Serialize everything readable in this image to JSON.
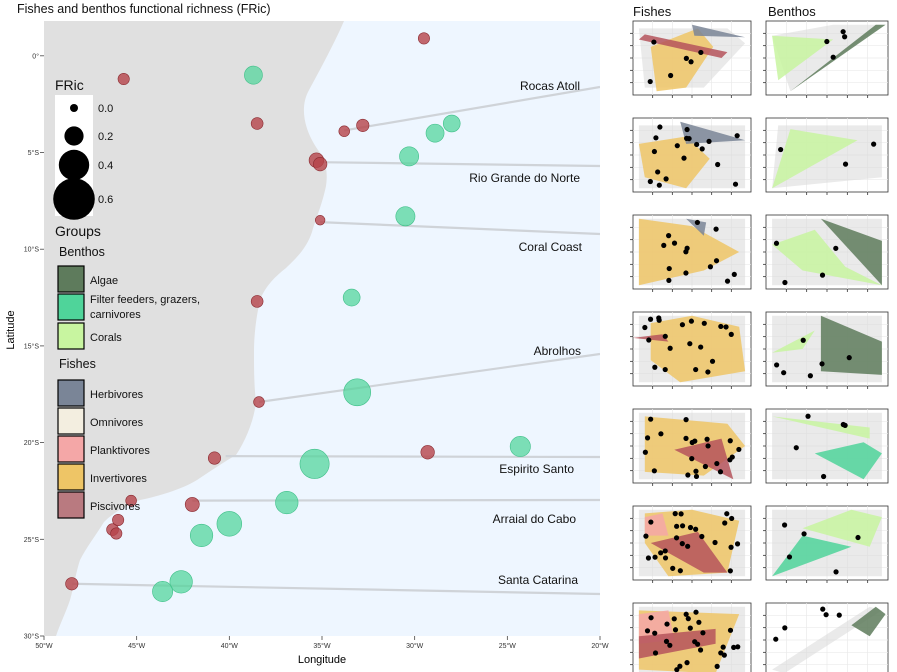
{
  "title": "Fishes and benthos functional richness (FRic)",
  "map": {
    "xlabel": "Longitude",
    "ylabel": "Latitude",
    "x_ticks": [
      {
        "value": -50,
        "label": "50°W"
      },
      {
        "value": -45,
        "label": "45°W"
      },
      {
        "value": -40,
        "label": "40°W"
      },
      {
        "value": -35,
        "label": "35°W"
      },
      {
        "value": -30,
        "label": "30°W"
      },
      {
        "value": -25,
        "label": "25°W"
      },
      {
        "value": -20,
        "label": "20°W"
      }
    ],
    "y_ticks": [
      {
        "value": 0,
        "label": "0°"
      },
      {
        "value": -5,
        "label": "5°S"
      },
      {
        "value": -10,
        "label": "10°S"
      },
      {
        "value": -15,
        "label": "15°S"
      },
      {
        "value": -20,
        "label": "20°S"
      },
      {
        "value": -25,
        "label": "25°S"
      },
      {
        "value": -30,
        "label": "30°S"
      }
    ],
    "xlim": [
      -50,
      -20
    ],
    "ylim": [
      -30,
      1.8
    ],
    "land_color": "#e0e0e0",
    "ocean_color": "#eef6ff"
  },
  "sites": [
    {
      "name": "Rocas Atoll",
      "lon": -33.8,
      "lat": -3.86
    },
    {
      "name": "Rio Grande do Norte",
      "lon": -35.1,
      "lat": -5.5
    },
    {
      "name": "Coral Coast",
      "lon": -35.1,
      "lat": -8.6
    },
    {
      "name": "Abrolhos",
      "lon": -38.4,
      "lat": -17.9
    },
    {
      "name": "Espirito Santo",
      "lon": -40.2,
      "lat": -20.7
    },
    {
      "name": "Arraial do Cabo",
      "lon": -42.0,
      "lat": -23.0
    },
    {
      "name": "Santa Catarina",
      "lon": -48.5,
      "lat": -27.3
    }
  ],
  "chart_data": [
    {
      "type": "scatter",
      "title": "Fishes and benthos functional richness (FRic)",
      "xlabel": "Longitude",
      "ylabel": "Latitude",
      "xlim": [
        -50,
        -20
      ],
      "ylim": [
        -30,
        1.8
      ],
      "size_legend": {
        "title": "FRic",
        "values": [
          0.0,
          0.2,
          0.4,
          0.6
        ]
      },
      "series": [
        {
          "name": "Piscivores",
          "group": "Fishes",
          "color": "#b5434a",
          "points": [
            {
              "lon": -29.5,
              "lat": 0.9,
              "fric": 0.06
            },
            {
              "lon": -45.7,
              "lat": -1.2,
              "fric": 0.06
            },
            {
              "lon": -38.5,
              "lat": -3.5,
              "fric": 0.07
            },
            {
              "lon": -33.8,
              "lat": -3.9,
              "fric": 0.05
            },
            {
              "lon": -32.8,
              "lat": -3.6,
              "fric": 0.08
            },
            {
              "lon": -35.3,
              "lat": -5.4,
              "fric": 0.12
            },
            {
              "lon": -35.1,
              "lat": -5.6,
              "fric": 0.1
            },
            {
              "lon": -35.1,
              "lat": -8.5,
              "fric": 0.03
            },
            {
              "lon": -38.5,
              "lat": -12.7,
              "fric": 0.07
            },
            {
              "lon": -38.4,
              "lat": -17.9,
              "fric": 0.05
            },
            {
              "lon": -40.8,
              "lat": -20.8,
              "fric": 0.08
            },
            {
              "lon": -29.3,
              "lat": -20.5,
              "fric": 0.1
            },
            {
              "lon": -45.3,
              "lat": -23.0,
              "fric": 0.05
            },
            {
              "lon": -42.0,
              "lat": -23.2,
              "fric": 0.11
            },
            {
              "lon": -46.0,
              "lat": -24.0,
              "fric": 0.06
            },
            {
              "lon": -46.3,
              "lat": -24.5,
              "fric": 0.07
            },
            {
              "lon": -46.1,
              "lat": -24.7,
              "fric": 0.06
            },
            {
              "lon": -48.5,
              "lat": -27.3,
              "fric": 0.08
            }
          ]
        },
        {
          "name": "Filter feeders, grazers, carnivores",
          "group": "Benthos",
          "color": "#4fd49a",
          "points": [
            {
              "lon": -38.7,
              "lat": -1.0,
              "fric": 0.18
            },
            {
              "lon": -28.0,
              "lat": -3.5,
              "fric": 0.16
            },
            {
              "lon": -28.9,
              "lat": -4.0,
              "fric": 0.18
            },
            {
              "lon": -30.3,
              "lat": -5.2,
              "fric": 0.2
            },
            {
              "lon": -30.5,
              "lat": -8.3,
              "fric": 0.2
            },
            {
              "lon": -33.4,
              "lat": -12.5,
              "fric": 0.16
            },
            {
              "lon": -33.1,
              "lat": -17.4,
              "fric": 0.34
            },
            {
              "lon": -24.3,
              "lat": -20.2,
              "fric": 0.22
            },
            {
              "lon": -35.4,
              "lat": -21.1,
              "fric": 0.38
            },
            {
              "lon": -36.9,
              "lat": -23.1,
              "fric": 0.26
            },
            {
              "lon": -40.0,
              "lat": -24.2,
              "fric": 0.3
            },
            {
              "lon": -41.5,
              "lat": -24.8,
              "fric": 0.26
            },
            {
              "lon": -42.6,
              "lat": -27.2,
              "fric": 0.26
            },
            {
              "lon": -43.6,
              "lat": -27.7,
              "fric": 0.22
            }
          ]
        }
      ]
    }
  ],
  "legend": {
    "fric_title": "FRic",
    "fric_sizes": [
      {
        "label": "0.0",
        "value": 0.0
      },
      {
        "label": "0.2",
        "value": 0.2
      },
      {
        "label": "0.4",
        "value": 0.4
      },
      {
        "label": "0.6",
        "value": 0.6
      }
    ],
    "groups_title": "Groups",
    "benthos_title": "Benthos",
    "benthos": [
      {
        "label_lines": [
          "Algae"
        ],
        "color": "#5e7b5c"
      },
      {
        "label_lines": [
          "Filter feeders, grazers,",
          "carnivores"
        ],
        "color": "#4fd49a"
      },
      {
        "label_lines": [
          "Corals"
        ],
        "color": "#c8f5a0"
      }
    ],
    "fishes_title": "Fishes",
    "fishes": [
      {
        "label_lines": [
          "Herbivores"
        ],
        "color": "#7a8597"
      },
      {
        "label_lines": [
          "Omnivores"
        ],
        "color": "#f3eee0"
      },
      {
        "label_lines": [
          "Planktivores"
        ],
        "color": "#f4a7a7"
      },
      {
        "label_lines": [
          "Invertivores"
        ],
        "color": "#eec566"
      },
      {
        "label_lines": [
          "Piscivores"
        ],
        "color": "#b97a80"
      }
    ]
  },
  "panels": {
    "fishes_title": "Fishes",
    "benthos_title": "Benthos"
  }
}
